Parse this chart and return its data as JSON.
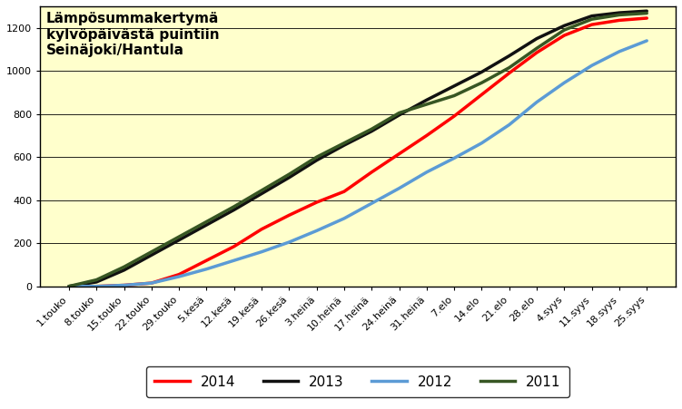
{
  "title": "Lämpösummakertymä\nkylvöpäivästä puintiin\nSeinäjoki/Hantula",
  "background_color": "#ffffcc",
  "outer_background": "#ffffff",
  "xlabels": [
    "1.touko",
    "8.touko",
    "15.touko",
    "22.touko",
    "29.touko",
    "5.kesä",
    "12.kesä",
    "19.kesä",
    "26.kesä",
    "3.heinä",
    "10.heinä",
    "17.heinä",
    "24.heinä",
    "31.heinä",
    "7.elo",
    "14.elo",
    "21.elo",
    "28.elo",
    "4.syys",
    "11.syys",
    "18.syys",
    "25.syys"
  ],
  "ylim": [
    0,
    1300
  ],
  "yticks": [
    0,
    200,
    400,
    600,
    800,
    1000,
    1200
  ],
  "series": {
    "2014": {
      "color": "#ff0000",
      "linewidth": 2.5,
      "values": [
        0,
        0,
        5,
        15,
        55,
        120,
        185,
        265,
        330,
        390,
        440,
        530,
        615,
        700,
        790,
        890,
        990,
        1085,
        1165,
        1215,
        1235,
        1245
      ]
    },
    "2013": {
      "color": "#111111",
      "linewidth": 2.5,
      "values": [
        0,
        20,
        75,
        145,
        215,
        285,
        355,
        430,
        505,
        585,
        655,
        720,
        795,
        865,
        930,
        995,
        1070,
        1150,
        1210,
        1255,
        1270,
        1278
      ]
    },
    "2012": {
      "color": "#5b9bd5",
      "linewidth": 2.5,
      "values": [
        0,
        0,
        5,
        15,
        45,
        80,
        120,
        160,
        205,
        258,
        315,
        385,
        455,
        530,
        595,
        665,
        750,
        855,
        945,
        1025,
        1090,
        1140
      ]
    },
    "2011": {
      "color": "#375623",
      "linewidth": 2.5,
      "values": [
        0,
        30,
        90,
        160,
        230,
        300,
        370,
        445,
        520,
        600,
        665,
        730,
        805,
        845,
        885,
        945,
        1015,
        1105,
        1190,
        1240,
        1260,
        1268
      ]
    }
  },
  "legend_order": [
    "2014",
    "2013",
    "2012",
    "2011"
  ],
  "title_fontsize": 11,
  "tick_fontsize": 8,
  "legend_fontsize": 11
}
